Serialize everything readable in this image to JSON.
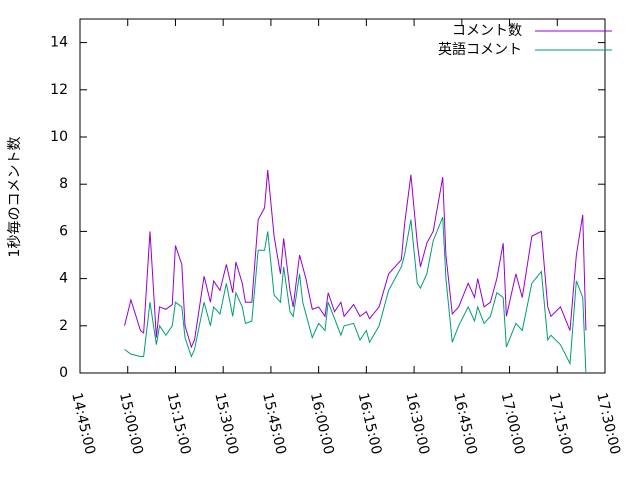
{
  "chart_data": {
    "type": "line",
    "y_label": "1秒毎のコメント数",
    "x": [
      "14:59:00",
      "15:01:00",
      "15:04:00",
      "15:05:00",
      "15:07:00",
      "15:09:00",
      "15:10:00",
      "15:12:00",
      "15:14:00",
      "15:15:00",
      "15:17:00",
      "15:18:00",
      "15:20:00",
      "15:21:00",
      "15:24:00",
      "15:26:00",
      "15:27:00",
      "15:29:00",
      "15:31:00",
      "15:33:00",
      "15:34:00",
      "15:36:00",
      "15:37:00",
      "15:39:00",
      "15:41:00",
      "15:43:00",
      "15:44:00",
      "15:46:00",
      "15:48:00",
      "15:49:00",
      "15:51:00",
      "15:52:00",
      "15:54:00",
      "15:55:00",
      "15:56:00",
      "15:58:00",
      "16:00:00",
      "16:02:00",
      "16:03:00",
      "16:05:00",
      "16:07:00",
      "16:08:00",
      "16:11:00",
      "16:13:00",
      "16:15:00",
      "16:16:00",
      "16:19:00",
      "16:22:00",
      "16:26:00",
      "16:27:00",
      "16:29:00",
      "16:31:00",
      "16:32:00",
      "16:34:00",
      "16:36:00",
      "16:39:00",
      "16:40:00",
      "16:42:00",
      "16:44:00",
      "16:47:00",
      "16:49:00",
      "16:50:00",
      "16:52:00",
      "16:54:00",
      "16:56:00",
      "16:58:00",
      "16:59:00",
      "17:02:00",
      "17:04:00",
      "17:07:00",
      "17:10:00",
      "17:12:00",
      "17:13:00",
      "17:16:00",
      "17:19:00",
      "17:21:00",
      "17:23:00",
      "17:24:00"
    ],
    "series": [
      {
        "name": "コメント数",
        "color": "#9400d3",
        "values": [
          2.0,
          3.1,
          1.8,
          1.7,
          6.0,
          1.5,
          2.8,
          2.7,
          2.9,
          5.4,
          4.6,
          2.0,
          1.1,
          1.4,
          4.1,
          3.0,
          3.9,
          3.5,
          4.6,
          3.4,
          4.7,
          3.8,
          3.0,
          3.0,
          6.5,
          7.0,
          8.6,
          5.8,
          4.2,
          5.7,
          3.5,
          2.8,
          5.0,
          4.5,
          4.0,
          2.7,
          2.8,
          2.4,
          3.4,
          2.6,
          3.0,
          2.4,
          2.9,
          2.4,
          2.6,
          2.3,
          2.8,
          4.2,
          4.8,
          6.3,
          8.4,
          5.5,
          4.5,
          5.5,
          6.0,
          8.3,
          5.0,
          2.5,
          2.8,
          3.8,
          3.2,
          4.0,
          2.8,
          3.0,
          4.0,
          5.5,
          2.4,
          4.2,
          3.2,
          5.8,
          6.0,
          2.8,
          2.4,
          2.8,
          1.8,
          5.0,
          6.7,
          1.8
        ]
      },
      {
        "name": "英語コメント",
        "color": "#009e73",
        "values": [
          1.0,
          0.8,
          0.7,
          0.7,
          3.0,
          1.2,
          2.0,
          1.6,
          2.0,
          3.0,
          2.8,
          1.5,
          0.7,
          1.0,
          3.0,
          2.0,
          2.8,
          2.5,
          3.8,
          2.4,
          3.4,
          2.8,
          2.1,
          2.2,
          5.2,
          5.2,
          6.0,
          3.3,
          3.0,
          4.5,
          2.6,
          2.4,
          4.2,
          3.0,
          2.5,
          1.5,
          2.1,
          1.8,
          3.0,
          2.3,
          1.6,
          2.0,
          2.1,
          1.4,
          1.8,
          1.3,
          2.0,
          3.5,
          4.5,
          5.0,
          6.5,
          3.8,
          3.6,
          4.2,
          5.6,
          6.6,
          4.0,
          1.3,
          2.0,
          2.8,
          2.2,
          2.8,
          2.1,
          2.4,
          3.4,
          3.2,
          1.1,
          2.1,
          1.8,
          3.8,
          4.3,
          1.4,
          1.6,
          1.2,
          0.4,
          3.9,
          3.2,
          0.0
        ]
      }
    ],
    "xlim": [
      "14:45:00",
      "17:30:00"
    ],
    "xticks": [
      "14:45:00",
      "15:00:00",
      "15:15:00",
      "15:30:00",
      "15:45:00",
      "16:00:00",
      "16:15:00",
      "16:30:00",
      "16:45:00",
      "17:00:00",
      "17:15:00",
      "17:30:00"
    ],
    "ylim": [
      0,
      15
    ],
    "yticks": [
      0,
      2,
      4,
      6,
      8,
      10,
      12,
      14
    ],
    "legend": "top-right"
  }
}
